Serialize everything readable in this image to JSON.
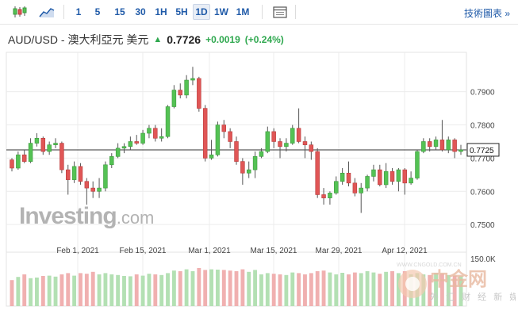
{
  "toolbar": {
    "icons": [
      "candlestick-icon",
      "area-chart-icon",
      "calendar-icon"
    ],
    "periods": [
      {
        "label": "1",
        "active": false
      },
      {
        "label": "5",
        "active": false
      },
      {
        "label": "15",
        "active": false
      },
      {
        "label": "30",
        "active": false
      },
      {
        "label": "1H",
        "active": false
      },
      {
        "label": "5H",
        "active": false
      },
      {
        "label": "1D",
        "active": true
      },
      {
        "label": "1W",
        "active": false
      },
      {
        "label": "1M",
        "active": false
      }
    ],
    "tech_chart_label": "技術圖表 »"
  },
  "quote": {
    "title": "AUD/USD - 澳大利亞元 美元",
    "price": "0.7726",
    "change": "+0.0019",
    "change_pct": "(+0.24%)",
    "up_color": "#2fa84f"
  },
  "watermark": {
    "brand": "Investing",
    "suffix": ".com"
  },
  "watermark2": {
    "main": "中金网",
    "sub": "外 汇 财 经 新 媒 体",
    "url": "WWW.CNGOLD.COM.CN"
  },
  "colors": {
    "up": "#54c254",
    "down": "#e05656",
    "vol_up": "#b3e0b3",
    "vol_down": "#f0b0b0"
  },
  "chart_data": {
    "type": "candlestick",
    "x_labels": [
      "Feb 1, 2021",
      "Feb 15, 2021",
      "Mar 1, 2021",
      "Mar 15, 2021",
      "Mar 29, 2021",
      "Apr 12, 2021"
    ],
    "y_ticks": [
      "0.7900",
      "0.7800",
      "0.7700",
      "0.7600",
      "0.7500"
    ],
    "ylim": [
      0.7455,
      0.799
    ],
    "current_price_label": "0.7725",
    "current_price": 0.7725,
    "volume_max_label": "150.0K",
    "volume_max": 150,
    "candles": [
      [
        0.7695,
        0.767,
        0.77,
        0.766
      ],
      [
        0.767,
        0.771,
        0.772,
        0.7665
      ],
      [
        0.771,
        0.769,
        0.7725,
        0.7685
      ],
      [
        0.769,
        0.7745,
        0.776,
        0.7685
      ],
      [
        0.7745,
        0.776,
        0.7775,
        0.7735
      ],
      [
        0.776,
        0.772,
        0.7765,
        0.771
      ],
      [
        0.772,
        0.774,
        0.775,
        0.771
      ],
      [
        0.774,
        0.7745,
        0.776,
        0.773
      ],
      [
        0.7745,
        0.7665,
        0.775,
        0.7655
      ],
      [
        0.7665,
        0.7635,
        0.768,
        0.759
      ],
      [
        0.7635,
        0.7675,
        0.769,
        0.7625
      ],
      [
        0.7675,
        0.763,
        0.7685,
        0.762
      ],
      [
        0.763,
        0.761,
        0.764,
        0.756
      ],
      [
        0.761,
        0.76,
        0.763,
        0.758
      ],
      [
        0.76,
        0.761,
        0.764,
        0.758
      ],
      [
        0.761,
        0.768,
        0.769,
        0.76
      ],
      [
        0.768,
        0.7705,
        0.7715,
        0.767
      ],
      [
        0.7705,
        0.773,
        0.7745,
        0.77
      ],
      [
        0.773,
        0.7735,
        0.7745,
        0.7715
      ],
      [
        0.7735,
        0.775,
        0.7765,
        0.7725
      ],
      [
        0.775,
        0.7745,
        0.777,
        0.774
      ],
      [
        0.7745,
        0.7775,
        0.7785,
        0.774
      ],
      [
        0.7775,
        0.779,
        0.78,
        0.776
      ],
      [
        0.779,
        0.776,
        0.78,
        0.775
      ],
      [
        0.776,
        0.7765,
        0.779,
        0.775
      ],
      [
        0.7765,
        0.7855,
        0.786,
        0.776
      ],
      [
        0.7855,
        0.7905,
        0.792,
        0.785
      ],
      [
        0.7905,
        0.789,
        0.7925,
        0.788
      ],
      [
        0.789,
        0.7935,
        0.795,
        0.788
      ],
      [
        0.7935,
        0.794,
        0.7975,
        0.792
      ],
      [
        0.794,
        0.785,
        0.7945,
        0.784
      ],
      [
        0.785,
        0.77,
        0.786,
        0.769
      ],
      [
        0.77,
        0.771,
        0.7755,
        0.7695
      ],
      [
        0.771,
        0.78,
        0.781,
        0.7705
      ],
      [
        0.78,
        0.778,
        0.7815,
        0.776
      ],
      [
        0.778,
        0.775,
        0.779,
        0.773
      ],
      [
        0.775,
        0.769,
        0.7765,
        0.768
      ],
      [
        0.769,
        0.7655,
        0.77,
        0.762
      ],
      [
        0.7655,
        0.7665,
        0.769,
        0.764
      ],
      [
        0.7665,
        0.7705,
        0.772,
        0.764
      ],
      [
        0.7705,
        0.772,
        0.773,
        0.77
      ],
      [
        0.772,
        0.778,
        0.7795,
        0.7715
      ],
      [
        0.778,
        0.775,
        0.779,
        0.773
      ],
      [
        0.775,
        0.7735,
        0.776,
        0.77
      ],
      [
        0.7735,
        0.7745,
        0.776,
        0.772
      ],
      [
        0.7745,
        0.779,
        0.78,
        0.774
      ],
      [
        0.779,
        0.775,
        0.785,
        0.7745
      ],
      [
        0.775,
        0.774,
        0.7765,
        0.77
      ],
      [
        0.774,
        0.772,
        0.775,
        0.7695
      ],
      [
        0.772,
        0.759,
        0.773,
        0.758
      ],
      [
        0.759,
        0.758,
        0.761,
        0.756
      ],
      [
        0.758,
        0.7595,
        0.76,
        0.756
      ],
      [
        0.7595,
        0.763,
        0.7645,
        0.759
      ],
      [
        0.763,
        0.7655,
        0.767,
        0.762
      ],
      [
        0.7655,
        0.7625,
        0.769,
        0.7615
      ],
      [
        0.7625,
        0.7595,
        0.764,
        0.7585
      ],
      [
        0.7595,
        0.761,
        0.7625,
        0.7535
      ],
      [
        0.761,
        0.7645,
        0.765,
        0.76
      ],
      [
        0.7645,
        0.7665,
        0.768,
        0.763
      ],
      [
        0.7665,
        0.762,
        0.768,
        0.7615
      ],
      [
        0.762,
        0.766,
        0.7685,
        0.761
      ],
      [
        0.766,
        0.763,
        0.767,
        0.762
      ],
      [
        0.763,
        0.7665,
        0.767,
        0.76
      ],
      [
        0.7665,
        0.7625,
        0.767,
        0.759
      ],
      [
        0.7625,
        0.764,
        0.766,
        0.762
      ],
      [
        0.764,
        0.772,
        0.7725,
        0.7635
      ],
      [
        0.772,
        0.775,
        0.776,
        0.7715
      ],
      [
        0.775,
        0.7735,
        0.776,
        0.772
      ],
      [
        0.7735,
        0.7755,
        0.7765,
        0.7725
      ],
      [
        0.7755,
        0.7725,
        0.7815,
        0.772
      ],
      [
        0.7725,
        0.7755,
        0.7765,
        0.7715
      ],
      [
        0.7755,
        0.772,
        0.776,
        0.77
      ],
      [
        0.772,
        0.7725,
        0.774,
        0.771
      ]
    ],
    "volumes": [
      82,
      92,
      100,
      88,
      90,
      95,
      96,
      93,
      100,
      104,
      96,
      104,
      102,
      108,
      100,
      104,
      100,
      98,
      95,
      94,
      100,
      96,
      102,
      100,
      98,
      104,
      112,
      110,
      116,
      110,
      120,
      114,
      116,
      115,
      114,
      112,
      110,
      116,
      108,
      114,
      100,
      104,
      102,
      100,
      98,
      106,
      104,
      100,
      104,
      110,
      112,
      106,
      100,
      105,
      100,
      106,
      104,
      110,
      106,
      102,
      108,
      110,
      104,
      110,
      100,
      104,
      100,
      98,
      104,
      102,
      98,
      96,
      94
    ]
  }
}
